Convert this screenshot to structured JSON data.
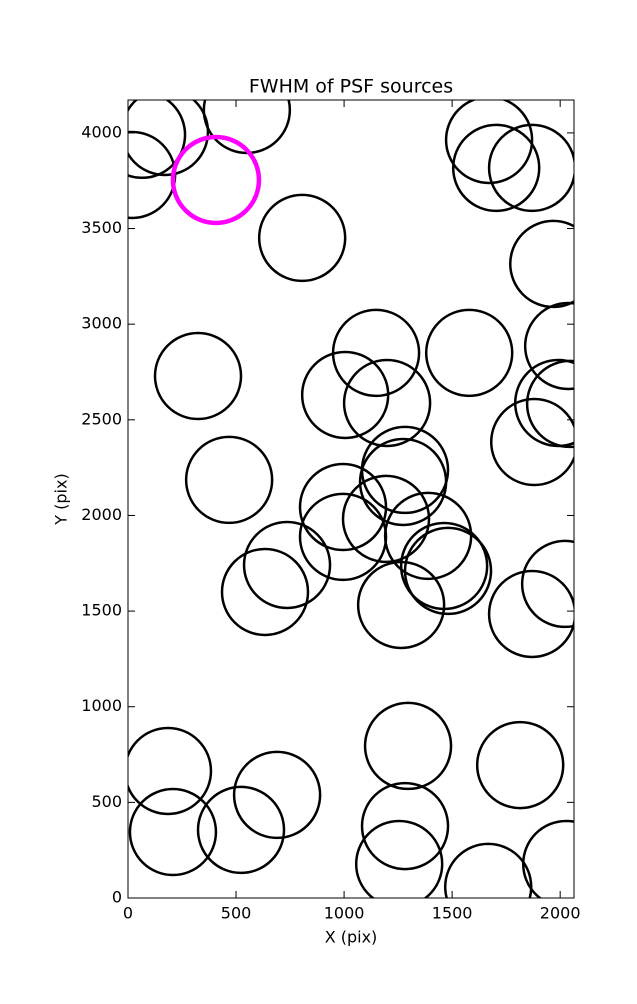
{
  "chart_data": {
    "type": "scatter",
    "title": "FWHM of PSF sources",
    "xlabel": "X (pix)",
    "ylabel": "Y (pix)",
    "xlim": [
      0,
      2064
    ],
    "ylim": [
      0,
      4172
    ],
    "xticks": [
      0,
      500,
      1000,
      1500,
      2000
    ],
    "yticks": [
      0,
      500,
      1000,
      1500,
      2000,
      2500,
      3000,
      3500,
      4000
    ],
    "series": [
      {
        "color": "#000000",
        "linewidth": 2.5,
        "x": [
          65,
          171,
          19,
          550,
          806,
          1671,
          1704,
          1870,
          1968,
          2037,
          2046,
          1991,
          1880,
          1579,
          1148,
          1005,
          1199,
          324,
          468,
          1282,
          1273,
          995,
          995,
          1194,
          1389,
          1463,
          1481,
          736,
          634,
          1264,
          1870,
          2023,
          185,
          208,
          523,
          690,
          1296,
          1815,
          1282,
          1255,
          1667,
          2028
        ],
        "values": [
          3990,
          4005,
          3780,
          4120,
          3451,
          3963,
          3817,
          3817,
          3315,
          2886,
          2583,
          2588,
          2384,
          2850,
          2850,
          2630,
          2588,
          2729,
          2186,
          2238,
          2175,
          2044,
          1888,
          1982,
          1893,
          1736,
          1710,
          1741,
          1600,
          1532,
          1485,
          1642,
          664,
          345,
          356,
          539,
          795,
          695,
          376,
          178,
          58,
          178
        ]
      },
      {
        "color": "#ff00ff",
        "linewidth": 4.5,
        "x": [
          407
        ],
        "values": [
          3754
        ]
      }
    ]
  }
}
